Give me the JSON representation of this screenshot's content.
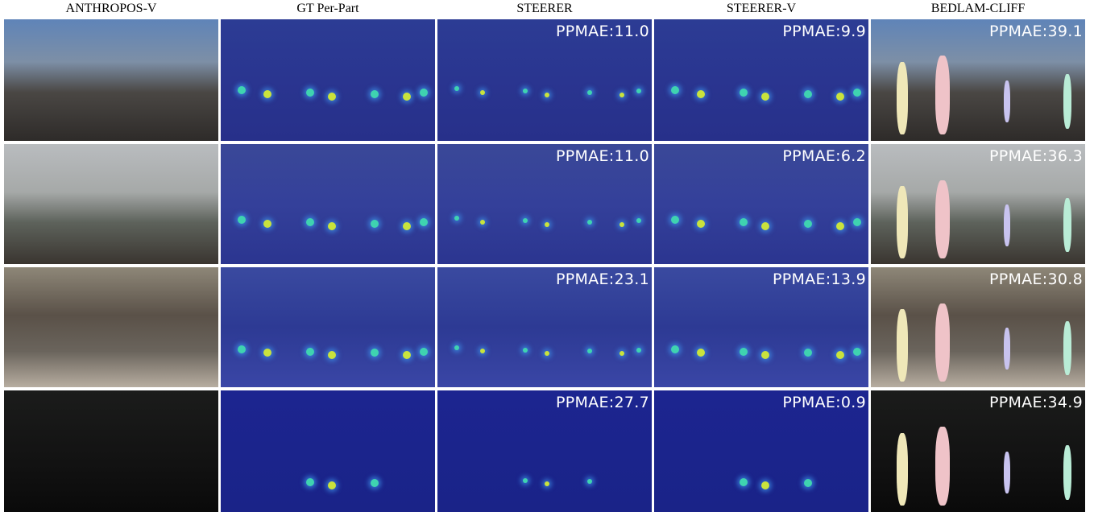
{
  "columns": [
    "ANTHROPOS-V",
    "GT Per-Part",
    "STEERER",
    "STEERER-V",
    "BEDLAM-CLIFF"
  ],
  "rows": [
    {
      "ppmae": [
        "PPMAE:11.0",
        "PPMAE:9.9",
        "PPMAE:39.1"
      ]
    },
    {
      "ppmae": [
        "PPMAE:11.0",
        "PPMAE:6.2",
        "PPMAE:36.3"
      ]
    },
    {
      "ppmae": [
        "PPMAE:23.1",
        "PPMAE:13.9",
        "PPMAE:30.8"
      ]
    },
    {
      "ppmae": [
        "PPMAE:27.7",
        "PPMAE:0.9",
        "PPMAE:34.9"
      ]
    }
  ]
}
